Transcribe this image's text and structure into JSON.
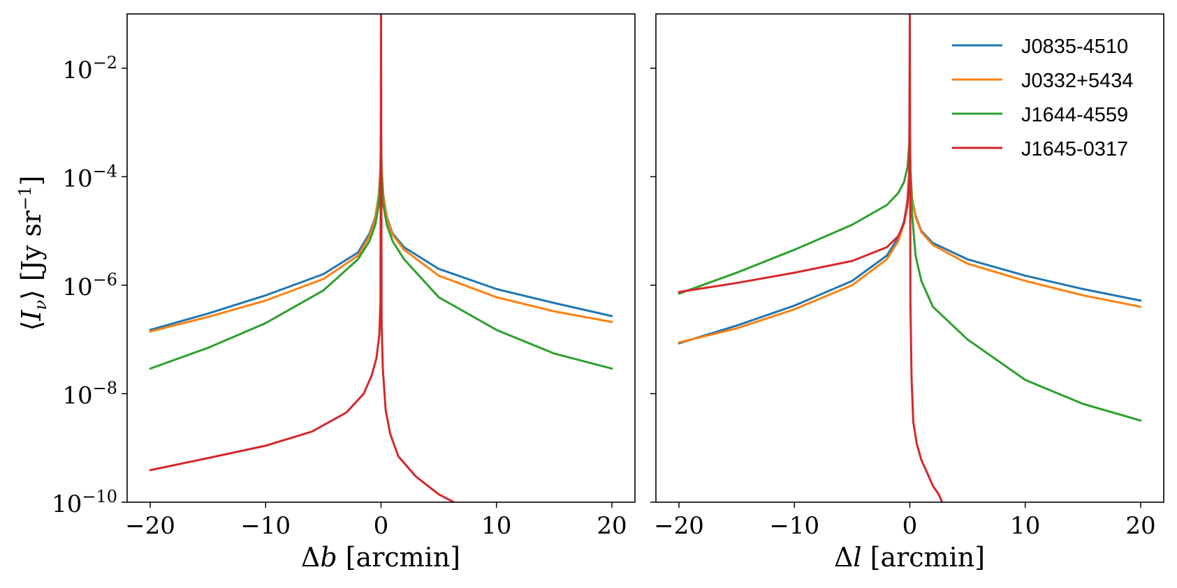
{
  "chart_data": {
    "type": "line",
    "shared_y": true,
    "yscale": "log",
    "ylim": [
      1e-10,
      0.1
    ],
    "ylabel": "⟨I_ν⟩ [Jy sr^−1]",
    "yticks": [
      {
        "mant": "10",
        "exp": "−10",
        "value": 1e-10
      },
      {
        "mant": "10",
        "exp": "−8",
        "value": 1e-08
      },
      {
        "mant": "10",
        "exp": "−6",
        "value": 1e-06
      },
      {
        "mant": "10",
        "exp": "−4",
        "value": 0.0001
      },
      {
        "mant": "10",
        "exp": "−2",
        "value": 0.01
      }
    ],
    "colors": {
      "J0835-4510": "#1f77b4",
      "J0332+5434": "#ff7f0e",
      "J1644-4559": "#2ca02c",
      "J1645-0317": "#d62728"
    },
    "legend": {
      "location": "upper right of right panel",
      "entries": [
        "J0835-4510",
        "J0332+5434",
        "J1644-4559",
        "J1645-0317"
      ]
    },
    "panels": [
      {
        "name": "latitude",
        "xlabel": "Δb [arcmin]",
        "xlim": [
          -22,
          22
        ],
        "xticks": [
          "−20",
          "−10",
          "0",
          "10",
          "20"
        ],
        "xtick_values": [
          -20,
          -10,
          0,
          10,
          20
        ],
        "series": [
          {
            "name": "J0835-4510",
            "points": [
              [
                -20,
                1.5e-07
              ],
              [
                -15,
                3e-07
              ],
              [
                -10,
                6.5e-07
              ],
              [
                -5,
                1.6e-06
              ],
              [
                -2,
                4e-06
              ],
              [
                -1,
                9e-06
              ],
              [
                -0.5,
                1.8e-05
              ],
              [
                -0.2,
                4.5e-05
              ],
              [
                -0.05,
                0.00015
              ],
              [
                0,
                0.0005
              ],
              [
                0.05,
                0.00015
              ],
              [
                0.2,
                4.5e-05
              ],
              [
                0.5,
                1.8e-05
              ],
              [
                1,
                9e-06
              ],
              [
                2,
                5e-06
              ],
              [
                5,
                2e-06
              ],
              [
                10,
                8.5e-07
              ],
              [
                15,
                4.7e-07
              ],
              [
                20,
                2.7e-07
              ]
            ]
          },
          {
            "name": "J0332+5434",
            "points": [
              [
                -20,
                1.4e-07
              ],
              [
                -15,
                2.6e-07
              ],
              [
                -10,
                5.2e-07
              ],
              [
                -5,
                1.3e-06
              ],
              [
                -2,
                3.5e-06
              ],
              [
                -1,
                8e-06
              ],
              [
                -0.5,
                1.7e-05
              ],
              [
                -0.2,
                4.2e-05
              ],
              [
                -0.05,
                0.00014
              ],
              [
                0,
                0.0005
              ],
              [
                0.05,
                0.00014
              ],
              [
                0.2,
                4.2e-05
              ],
              [
                0.5,
                1.7e-05
              ],
              [
                1,
                8.5e-06
              ],
              [
                2,
                4.5e-06
              ],
              [
                5,
                1.5e-06
              ],
              [
                10,
                6e-07
              ],
              [
                15,
                3.3e-07
              ],
              [
                20,
                2.1e-07
              ]
            ]
          },
          {
            "name": "J1644-4559",
            "points": [
              [
                -20,
                2.9e-08
              ],
              [
                -15,
                7e-08
              ],
              [
                -10,
                2e-07
              ],
              [
                -5,
                8e-07
              ],
              [
                -2,
                3e-06
              ],
              [
                -1,
                6.5e-06
              ],
              [
                -0.5,
                1.3e-05
              ],
              [
                -0.2,
                3e-05
              ],
              [
                -0.05,
                0.0001
              ],
              [
                0,
                0.0005
              ],
              [
                0.05,
                0.0001
              ],
              [
                0.2,
                3e-05
              ],
              [
                0.5,
                1.3e-05
              ],
              [
                1,
                6.5e-06
              ],
              [
                2,
                3e-06
              ],
              [
                5,
                6e-07
              ],
              [
                10,
                1.5e-07
              ],
              [
                15,
                5.5e-08
              ],
              [
                20,
                2.9e-08
              ]
            ]
          },
          {
            "name": "J1645-0317",
            "points": [
              [
                -20,
                3.9e-10
              ],
              [
                -15,
                6.5e-10
              ],
              [
                -10,
                1.1e-09
              ],
              [
                -6,
                2e-09
              ],
              [
                -3,
                4.5e-09
              ],
              [
                -1.5,
                1e-08
              ],
              [
                -0.8,
                2.2e-08
              ],
              [
                -0.4,
                4.5e-08
              ],
              [
                -0.15,
                1.2e-07
              ],
              [
                -0.05,
                5e-07
              ],
              [
                0,
                0.1
              ],
              [
                0.05,
                2e-07
              ],
              [
                0.15,
                3e-08
              ],
              [
                0.4,
                5e-09
              ],
              [
                0.8,
                1.8e-09
              ],
              [
                1.5,
                7e-10
              ],
              [
                3,
                3e-10
              ],
              [
                5,
                1.4e-10
              ],
              [
                6.3,
                1e-10
              ]
            ]
          }
        ]
      },
      {
        "name": "longitude",
        "xlabel": "Δl [arcmin]",
        "xlim": [
          -22,
          22
        ],
        "xticks": [
          "−20",
          "−10",
          "0",
          "10",
          "20"
        ],
        "xtick_values": [
          -20,
          -10,
          0,
          10,
          20
        ],
        "series": [
          {
            "name": "J0835-4510",
            "points": [
              [
                -20,
                8.5e-08
              ],
              [
                -15,
                1.8e-07
              ],
              [
                -10,
                4.2e-07
              ],
              [
                -5,
                1.2e-06
              ],
              [
                -2,
                3.5e-06
              ],
              [
                -1,
                7.5e-06
              ],
              [
                -0.5,
                1.5e-05
              ],
              [
                -0.2,
                3.8e-05
              ],
              [
                -0.05,
                0.00013
              ],
              [
                0,
                0.0005
              ],
              [
                0.05,
                0.00013
              ],
              [
                0.2,
                4e-05
              ],
              [
                0.5,
                1.9e-05
              ],
              [
                1,
                1e-05
              ],
              [
                2,
                6e-06
              ],
              [
                5,
                3e-06
              ],
              [
                10,
                1.5e-06
              ],
              [
                15,
                8.5e-07
              ],
              [
                20,
                5.2e-07
              ]
            ]
          },
          {
            "name": "J0332+5434",
            "points": [
              [
                -20,
                8.8e-08
              ],
              [
                -15,
                1.6e-07
              ],
              [
                -10,
                3.6e-07
              ],
              [
                -5,
                1e-06
              ],
              [
                -2,
                3e-06
              ],
              [
                -1,
                6.5e-06
              ],
              [
                -0.5,
                1.4e-05
              ],
              [
                -0.2,
                3.5e-05
              ],
              [
                -0.05,
                0.00012
              ],
              [
                0,
                0.0005
              ],
              [
                0.05,
                0.00012
              ],
              [
                0.2,
                3.8e-05
              ],
              [
                0.5,
                1.8e-05
              ],
              [
                1,
                9.5e-06
              ],
              [
                2,
                5.5e-06
              ],
              [
                5,
                2.5e-06
              ],
              [
                10,
                1.2e-06
              ],
              [
                15,
                6.5e-07
              ],
              [
                20,
                4e-07
              ]
            ]
          },
          {
            "name": "J1644-4559",
            "points": [
              [
                -20,
                7e-07
              ],
              [
                -15,
                1.7e-06
              ],
              [
                -10,
                4.5e-06
              ],
              [
                -5,
                1.3e-05
              ],
              [
                -2,
                3e-05
              ],
              [
                -1,
                5e-05
              ],
              [
                -0.5,
                8e-05
              ],
              [
                -0.2,
                0.00015
              ],
              [
                -0.05,
                0.0004
              ],
              [
                0,
                0.001
              ],
              [
                0.05,
                0.00015
              ],
              [
                0.2,
                2e-05
              ],
              [
                0.5,
                3.5e-06
              ],
              [
                1,
                1.2e-06
              ],
              [
                2,
                4e-07
              ],
              [
                5,
                1e-07
              ],
              [
                10,
                1.8e-08
              ],
              [
                15,
                6.5e-09
              ],
              [
                20,
                3.2e-09
              ]
            ]
          },
          {
            "name": "J1645-0317",
            "points": [
              [
                -20,
                7.5e-07
              ],
              [
                -15,
                1.1e-06
              ],
              [
                -10,
                1.7e-06
              ],
              [
                -5,
                2.8e-06
              ],
              [
                -2,
                5e-06
              ],
              [
                -1,
                8e-06
              ],
              [
                -0.5,
                1.4e-05
              ],
              [
                -0.2,
                3e-05
              ],
              [
                -0.05,
                0.0001
              ],
              [
                0,
                0.1
              ],
              [
                0.05,
                5e-07
              ],
              [
                0.15,
                2e-08
              ],
              [
                0.3,
                3e-09
              ],
              [
                0.6,
                1.2e-09
              ],
              [
                1,
                6e-10
              ],
              [
                1.5,
                3.5e-10
              ],
              [
                2,
                2e-10
              ],
              [
                2.5,
                1.4e-10
              ],
              [
                2.8,
                1e-10
              ]
            ]
          }
        ]
      }
    ]
  }
}
